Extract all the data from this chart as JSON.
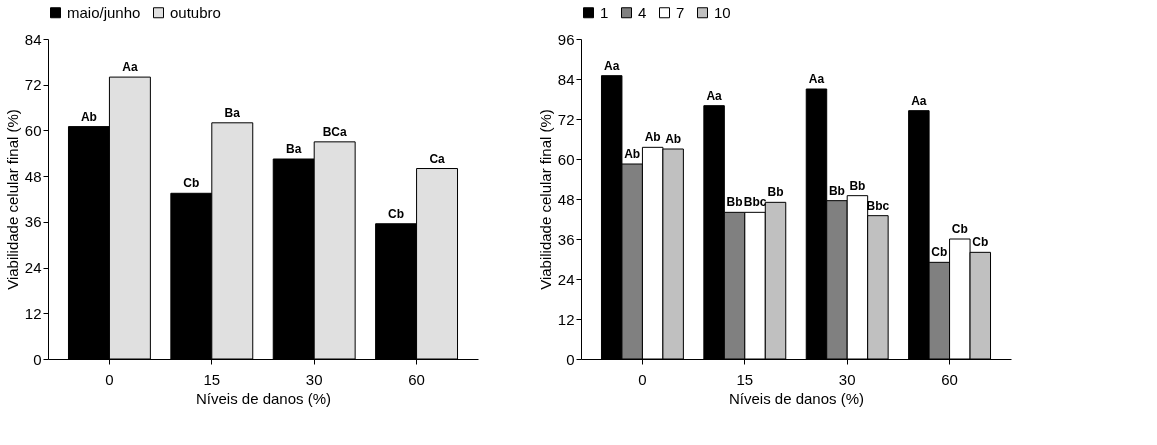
{
  "chart_data": [
    {
      "type": "bar",
      "xlabel": "Níveis de danos (%)",
      "ylabel": "Viabilidade celular final (%)",
      "categories": [
        "0",
        "15",
        "30",
        "60"
      ],
      "ylim": [
        0,
        84
      ],
      "yticks": [
        0,
        12,
        24,
        36,
        48,
        60,
        72,
        84
      ],
      "grid": false,
      "legend": "top",
      "series": [
        {
          "name": "maio/junho",
          "color": "#000000",
          "values": [
            61,
            43.5,
            52.5,
            35.5
          ],
          "value_labels": [
            "Ab",
            "Cb",
            "Ba",
            "Cb"
          ]
        },
        {
          "name": "outubro",
          "color": "#e0e0e0",
          "values": [
            74,
            62,
            57,
            50
          ],
          "value_labels": [
            "Aa",
            "Ba",
            "BCa",
            "Ca"
          ]
        }
      ]
    },
    {
      "type": "bar",
      "xlabel": "Níveis de danos (%)",
      "ylabel": "Viabilidade celular final (%)",
      "categories": [
        "0",
        "15",
        "30",
        "60"
      ],
      "ylim": [
        0,
        96
      ],
      "yticks": [
        0,
        12,
        24,
        36,
        48,
        60,
        72,
        84,
        96
      ],
      "grid": false,
      "legend": "top",
      "series": [
        {
          "name": "1",
          "color": "#000000",
          "values": [
            85,
            76,
            81,
            74.5
          ],
          "value_labels": [
            "Aa",
            "Aa",
            "Aa",
            "Aa"
          ]
        },
        {
          "name": "4",
          "color": "#808080",
          "values": [
            58.5,
            44,
            47.5,
            29
          ],
          "value_labels": [
            "Ab",
            "Bb",
            "Bb",
            "Cb"
          ]
        },
        {
          "name": "7",
          "color": "#ffffff",
          "values": [
            63.5,
            44,
            49,
            36
          ],
          "value_labels": [
            "Ab",
            "Bbc",
            "Bb",
            "Cb"
          ]
        },
        {
          "name": "10",
          "color": "#c0c0c0",
          "values": [
            63,
            47,
            43,
            32
          ],
          "value_labels": [
            "Ab",
            "Bb",
            "Bbc",
            "Cb"
          ]
        }
      ]
    }
  ]
}
